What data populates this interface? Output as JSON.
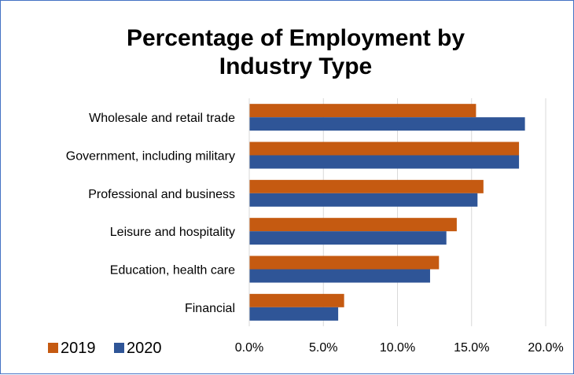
{
  "chart_data": {
    "type": "bar",
    "orientation": "horizontal",
    "title": "Percentage of Employment by Industry Type",
    "title_lines": [
      "Percentage of Employment by",
      "Industry Type"
    ],
    "categories": [
      "Wholesale and retail trade",
      "Government, including military",
      "Professional and business",
      "Leisure and hospitality",
      "Education, health care",
      "Financial"
    ],
    "series": [
      {
        "name": "2019",
        "color": "#c55a11",
        "values": [
          15.3,
          18.2,
          15.8,
          14.0,
          12.8,
          6.4
        ]
      },
      {
        "name": "2020",
        "color": "#2f5597",
        "values": [
          18.6,
          18.2,
          15.4,
          13.3,
          12.2,
          6.0
        ]
      }
    ],
    "x_ticks": [
      "0.0%",
      "5.0%",
      "10.0%",
      "15.0%",
      "20.0%"
    ],
    "xlim": [
      0,
      20
    ],
    "xlabel": "",
    "ylabel": "",
    "grid": true,
    "legend_position": "bottom-left"
  }
}
